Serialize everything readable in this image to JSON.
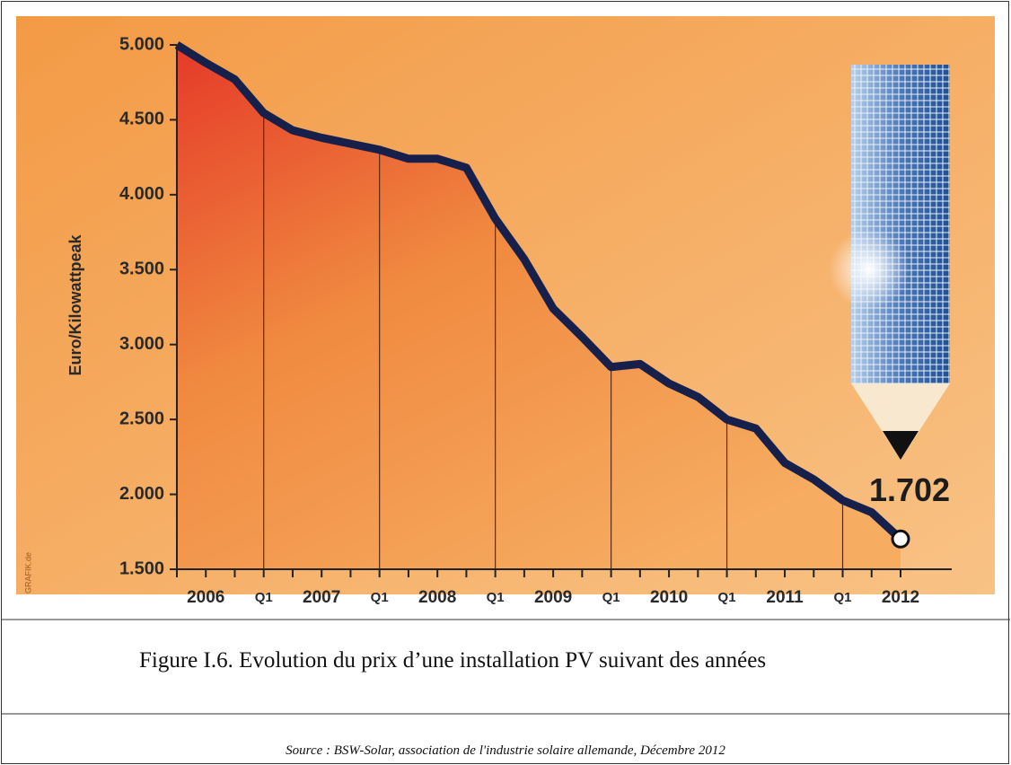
{
  "chart_data": {
    "type": "area",
    "ylabel": "Euro/Kilowattpeak",
    "credit": "GRAFIK.de",
    "categories": [
      null,
      "2006",
      null,
      "Q1",
      null,
      "2007",
      null,
      "Q1",
      null,
      "2008",
      null,
      "Q1",
      null,
      "2009",
      null,
      "Q1",
      null,
      "2010",
      null,
      "Q1",
      null,
      "2011",
      null,
      "Q1",
      null,
      "2012"
    ],
    "values": [
      5000,
      4880,
      4770,
      4545,
      4430,
      4380,
      4340,
      4300,
      4240,
      4240,
      4180,
      3840,
      3570,
      3240,
      3050,
      2850,
      2870,
      2740,
      2650,
      2500,
      2440,
      2210,
      2100,
      1960,
      1880,
      1702
    ],
    "value_labels": [
      null,
      null,
      null,
      null,
      null,
      null,
      null,
      null,
      null,
      null,
      null,
      null,
      null,
      null,
      null,
      null,
      null,
      null,
      null,
      null,
      null,
      null,
      null,
      null,
      null,
      "1.702"
    ],
    "color": "#16204a",
    "ylim": [
      1500,
      5000
    ],
    "yticks": [
      {
        "value": 1500,
        "label": "1.500"
      },
      {
        "value": 2000,
        "label": "2.000"
      },
      {
        "value": 2500,
        "label": "2.500"
      },
      {
        "value": 3000,
        "label": "3.000"
      },
      {
        "value": 3500,
        "label": "3.500"
      },
      {
        "value": 4000,
        "label": "4.000"
      },
      {
        "value": 4500,
        "label": "4.500"
      },
      {
        "value": 5000,
        "label": "5.000"
      }
    ],
    "droplines": true
  },
  "caption": "Figure I.6. Evolution du prix d’une installation PV suivant des années",
  "source": "Source : BSW-Solar, association de l'industrie solaire allemande, Décembre 2012"
}
